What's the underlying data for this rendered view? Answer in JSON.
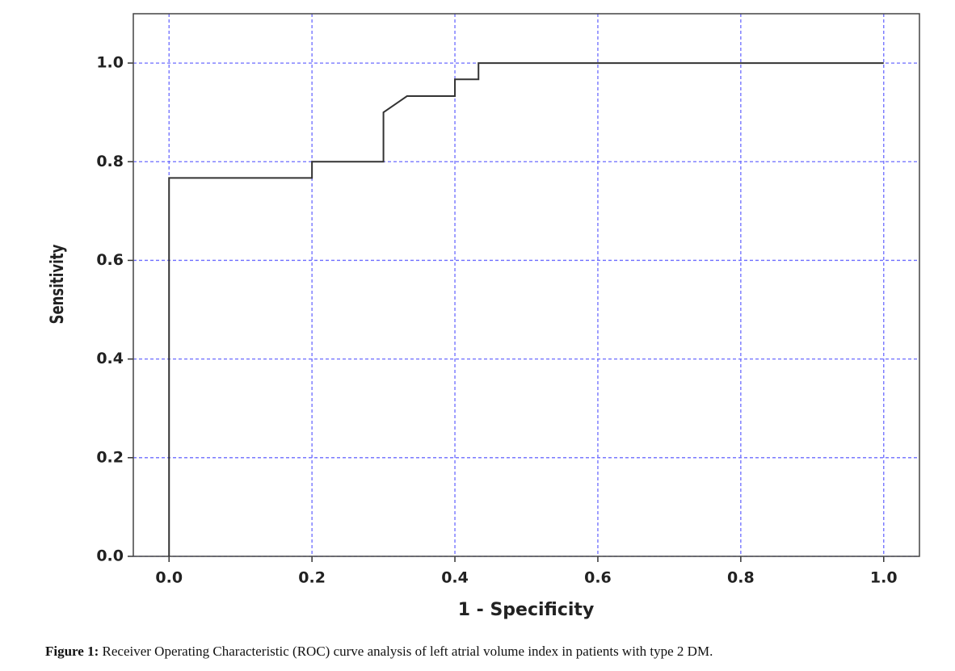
{
  "chart_data": {
    "type": "line",
    "x": [
      0,
      0,
      0.2,
      0.2,
      0.3,
      0.3,
      0.333,
      0.4,
      0.4,
      0.433,
      0.433,
      1.0
    ],
    "values": [
      0,
      0.767,
      0.767,
      0.8,
      0.8,
      0.9,
      0.933,
      0.933,
      0.967,
      0.967,
      1.0,
      1.0
    ],
    "color": "#333333",
    "xlabel": "1 - Specificity",
    "ylabel": "Sensitivity",
    "xlim": [
      -0.05,
      1.05
    ],
    "ylim": [
      0,
      1.1
    ],
    "xticks": [
      {
        "value": 0,
        "label": "0.0"
      },
      0.2,
      0.4,
      0.6,
      0.8,
      {
        "value": 1,
        "label": "1.0"
      }
    ],
    "yticks": [
      {
        "value": 0,
        "label": "0.0"
      },
      0.2,
      0.4,
      0.6,
      0.8,
      {
        "value": 1,
        "label": "1.0"
      }
    ],
    "grid": true,
    "grid_color": "#6b6bff"
  },
  "caption": {
    "label": "Figure 1:",
    "text": " Receiver Operating Characteristic (ROC) curve analysis of left atrial volume index in patients with type 2 DM."
  }
}
